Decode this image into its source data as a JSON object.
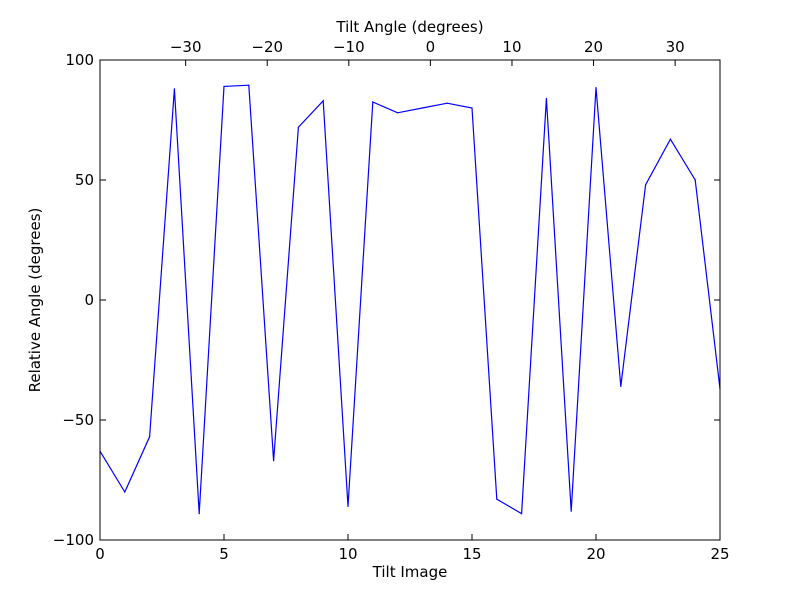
{
  "chart_data": {
    "type": "line",
    "xlabel": "Tilt Image",
    "ylabel": "Relative Angle (degrees)",
    "top_xlabel": "Tilt Angle (degrees)",
    "xlim": [
      0,
      25
    ],
    "ylim": [
      -100,
      100
    ],
    "top_xlim": [
      -40.5,
      35.5
    ],
    "x_ticks": [
      0,
      5,
      10,
      15,
      20,
      25
    ],
    "y_ticks": [
      -100,
      -50,
      0,
      50,
      100
    ],
    "top_ticks": [
      -30,
      -20,
      -10,
      0,
      10,
      20,
      30
    ],
    "x_tick_labels": [
      "0",
      "5",
      "10",
      "15",
      "20",
      "25"
    ],
    "y_tick_labels": [
      "−100",
      "−50",
      "0",
      "50",
      "100"
    ],
    "top_tick_labels": [
      "−30",
      "−20",
      "−10",
      "0",
      "10",
      "20",
      "30"
    ],
    "grid": false,
    "line_color": "#0000ff",
    "series": [
      {
        "x": [
          0,
          1,
          2,
          3,
          4,
          5,
          6,
          7,
          8,
          9,
          10,
          11,
          12,
          13,
          14,
          15,
          16,
          17,
          18,
          19,
          20,
          21,
          22,
          23,
          24,
          25
        ],
        "values": [
          -63,
          -80,
          -57,
          88,
          -89,
          89,
          89.5,
          -67,
          72,
          83,
          -86,
          82.5,
          78,
          80,
          82,
          80,
          -83,
          -89,
          84,
          -88,
          88.5,
          -36,
          48,
          67,
          50,
          -37
        ]
      }
    ]
  }
}
